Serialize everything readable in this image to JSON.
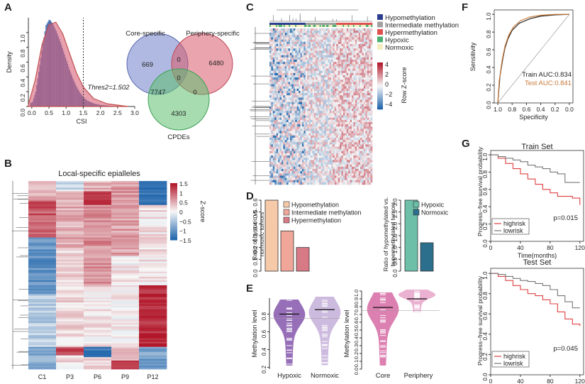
{
  "panel_labels": {
    "a": "A",
    "b": "B",
    "c": "C",
    "d": "D",
    "e": "E",
    "f": "F",
    "g": "G"
  },
  "colors": {
    "blue": "#4a6fb0",
    "pink": "#d9607a",
    "purple": "#7a3f8c",
    "red": "#c0504d",
    "green": "#4caf70",
    "hypo": "#2b3d8f",
    "hyper": "#e05050",
    "inter": "#a0a0a0",
    "normoxic": "#f3edc0"
  },
  "chart_data": [
    {
      "id": "A1",
      "type": "area",
      "xlabel": "CSI",
      "ylabel": "Density",
      "xlim": [
        -0.1,
        3.0
      ],
      "ylim": [
        0,
        1.2
      ],
      "xticks": [
        "0.0",
        "0.5",
        "1.0",
        "1.5",
        "2.0",
        "2.5",
        "3.0"
      ],
      "yticks": [
        "0.0",
        "0.2",
        "0.4",
        "0.6",
        "0.8",
        "1.0"
      ],
      "threshold": 1.502,
      "threshold_label": "Thres2=1.502",
      "series": [
        {
          "name": "histogram",
          "x": [
            0,
            0.1,
            0.2,
            0.3,
            0.4,
            0.5,
            0.6,
            0.7,
            0.8,
            0.9,
            1.0,
            1.1,
            1.2,
            1.3,
            1.4,
            1.5,
            1.6,
            1.8,
            2.0,
            2.5
          ],
          "values": [
            0.05,
            0.2,
            0.5,
            0.82,
            1.1,
            1.18,
            1.12,
            1.02,
            0.9,
            0.76,
            0.62,
            0.48,
            0.36,
            0.26,
            0.18,
            0.12,
            0.08,
            0.04,
            0.02,
            0.0
          ]
        },
        {
          "name": "density",
          "x": [
            -0.1,
            0.1,
            0.3,
            0.5,
            0.7,
            0.9,
            1.1,
            1.3,
            1.5,
            1.8,
            2.2,
            2.8
          ],
          "values": [
            0.02,
            0.3,
            0.7,
            0.92,
            0.95,
            0.82,
            0.6,
            0.38,
            0.22,
            0.09,
            0.03,
            0.0
          ]
        }
      ]
    },
    {
      "id": "A2",
      "type": "venn",
      "sets": [
        "Core-specific",
        "Periphery-specific",
        "CPDEs"
      ],
      "regions": {
        "core_only": "669",
        "periphery_only": "6480",
        "cpdes_only": "4303",
        "core_periphery": "0",
        "core_cpdes": "7747",
        "periphery_cpdes": "0",
        "all": "0"
      }
    },
    {
      "id": "B",
      "type": "heatmap",
      "title": "Local-specific epialleles",
      "categories": [
        "C1",
        "P3",
        "P6",
        "P9",
        "P12"
      ],
      "legend_title": "Z-score",
      "legend_ticks": [
        "1.5",
        "1",
        "0.5",
        "0",
        "−0.5",
        "−1",
        "−1.5"
      ],
      "zlim": [
        -1.5,
        1.5
      ]
    },
    {
      "id": "C",
      "type": "heatmap",
      "legend": [
        "Hypomethylation",
        "Intermediate methylation",
        "Hypermethylation",
        "Hypoxic",
        "Normoxic"
      ],
      "legend_title": "Row Z-score",
      "legend_ticks": [
        "4",
        "2",
        "0",
        "−2",
        "−4"
      ]
    },
    {
      "id": "D1",
      "type": "bar",
      "ylabel": "Ratio of hypoxic vs. normoxic tumors",
      "yticks": [
        "0.0",
        "0.1",
        "0.2",
        "0.3",
        "0.4",
        "0.5",
        "0.6"
      ],
      "ylim": [
        0,
        0.6
      ],
      "categories": [
        "Hypomethylation",
        "Intermediate methylation",
        "Hypermethylation"
      ],
      "values": [
        0.6,
        0.34,
        0.2
      ]
    },
    {
      "id": "D2",
      "type": "bar",
      "ylabel": "Ratio of hypomethylated vs. hypermethylated tumors",
      "yticks": [
        "0.0",
        "0.5",
        "1.0",
        "1.5",
        "2.0",
        "2.5",
        "3.0"
      ],
      "ylim": [
        0,
        3.0
      ],
      "categories": [
        "Hypoxic",
        "Normoxic"
      ],
      "values": [
        3.0,
        1.2
      ]
    },
    {
      "id": "E1",
      "type": "violin",
      "ylabel": "Methylation level",
      "categories": [
        "Hypoxic",
        "Normoxic"
      ],
      "yticks": [
        "0.2",
        "0.4",
        "0.6",
        "0.8"
      ],
      "ylim": [
        0.18,
        0.98
      ],
      "medians": [
        0.8,
        0.85
      ],
      "ref_line": 0.75
    },
    {
      "id": "E2",
      "type": "violin",
      "ylabel": "Methylation level",
      "categories": [
        "Core",
        "Periphery"
      ],
      "yticks": [
        "0.0",
        "0.1",
        "0.2",
        "0.3",
        "0.4",
        "0.5",
        "0.6",
        "0.7",
        "0.8",
        "0.9",
        "1.0"
      ],
      "ylim": [
        0,
        1.0
      ],
      "medians": [
        0.79,
        0.9
      ],
      "ref_line": 0.75
    },
    {
      "id": "F",
      "type": "line",
      "xlabel": "Specificity",
      "ylabel": "Sensitivity",
      "xticks": [
        "1.0",
        "0.8",
        "0.6",
        "0.4",
        "0.2",
        "0.0"
      ],
      "yticks": [
        "0.0",
        "0.2",
        "0.4",
        "0.6",
        "0.8",
        "1.0"
      ],
      "series": [
        {
          "name": "Train AUC:0.834",
          "specificity": [
            1.0,
            0.97,
            0.93,
            0.9,
            0.86,
            0.8,
            0.7,
            0.55,
            0.4,
            0.2,
            0.0
          ],
          "sensitivity": [
            0,
            0.3,
            0.5,
            0.62,
            0.72,
            0.82,
            0.9,
            0.95,
            0.98,
            0.995,
            1.0
          ]
        },
        {
          "name": "Test AUC:0.841",
          "specificity": [
            1.0,
            0.98,
            0.94,
            0.9,
            0.85,
            0.78,
            0.68,
            0.55,
            0.4,
            0.2,
            0.0
          ],
          "sensitivity": [
            0,
            0.25,
            0.48,
            0.64,
            0.76,
            0.86,
            0.93,
            0.97,
            0.99,
            1.0,
            1.0
          ]
        }
      ]
    },
    {
      "id": "G1",
      "type": "line",
      "title": "Train Set",
      "xlabel": "Time(months)",
      "ylabel": "Progress−free survival probability",
      "xticks": [
        "0",
        "40",
        "80",
        "120"
      ],
      "yticks": [
        "0.0",
        "0.2",
        "0.4",
        "0.6",
        "0.8",
        "1.0"
      ],
      "pvalue": "p=0.015",
      "legend": [
        "highrisk",
        "lowrisk"
      ],
      "series": [
        {
          "name": "highrisk",
          "x": [
            0,
            10,
            20,
            30,
            40,
            50,
            60,
            70,
            80,
            90,
            100,
            110,
            120
          ],
          "values": [
            1,
            0.96,
            0.9,
            0.84,
            0.78,
            0.72,
            0.66,
            0.6,
            0.56,
            0.52,
            0.52,
            0.5,
            0.42
          ]
        },
        {
          "name": "lowrisk",
          "x": [
            0,
            10,
            20,
            30,
            40,
            50,
            60,
            70,
            80,
            90,
            100,
            110,
            120
          ],
          "values": [
            1,
            0.98,
            0.96,
            0.94,
            0.92,
            0.88,
            0.86,
            0.84,
            0.8,
            0.78,
            0.68,
            0.68,
            0.68
          ]
        }
      ]
    },
    {
      "id": "G2",
      "type": "line",
      "title": "Test Set",
      "xlabel": "Time(months)",
      "ylabel": "Progress−free survival probability",
      "xticks": [
        "0",
        "40",
        "80",
        "120"
      ],
      "yticks": [
        "0.0",
        "0.2",
        "0.4",
        "0.6",
        "0.8",
        "1.0"
      ],
      "pvalue": "p=0.045",
      "legend": [
        "highrisk",
        "lowrisk"
      ],
      "series": [
        {
          "name": "highrisk",
          "x": [
            0,
            10,
            20,
            30,
            40,
            50,
            60,
            70,
            80,
            90,
            100,
            110,
            120
          ],
          "values": [
            1,
            0.97,
            0.93,
            0.88,
            0.84,
            0.8,
            0.78,
            0.74,
            0.7,
            0.62,
            0.55,
            0.5,
            0.48
          ]
        },
        {
          "name": "lowrisk",
          "x": [
            0,
            10,
            20,
            30,
            40,
            50,
            60,
            70,
            80,
            90,
            100,
            110,
            120
          ],
          "values": [
            1,
            0.99,
            0.97,
            0.95,
            0.93,
            0.92,
            0.9,
            0.88,
            0.84,
            0.78,
            0.72,
            0.66,
            0.66
          ]
        }
      ]
    }
  ]
}
